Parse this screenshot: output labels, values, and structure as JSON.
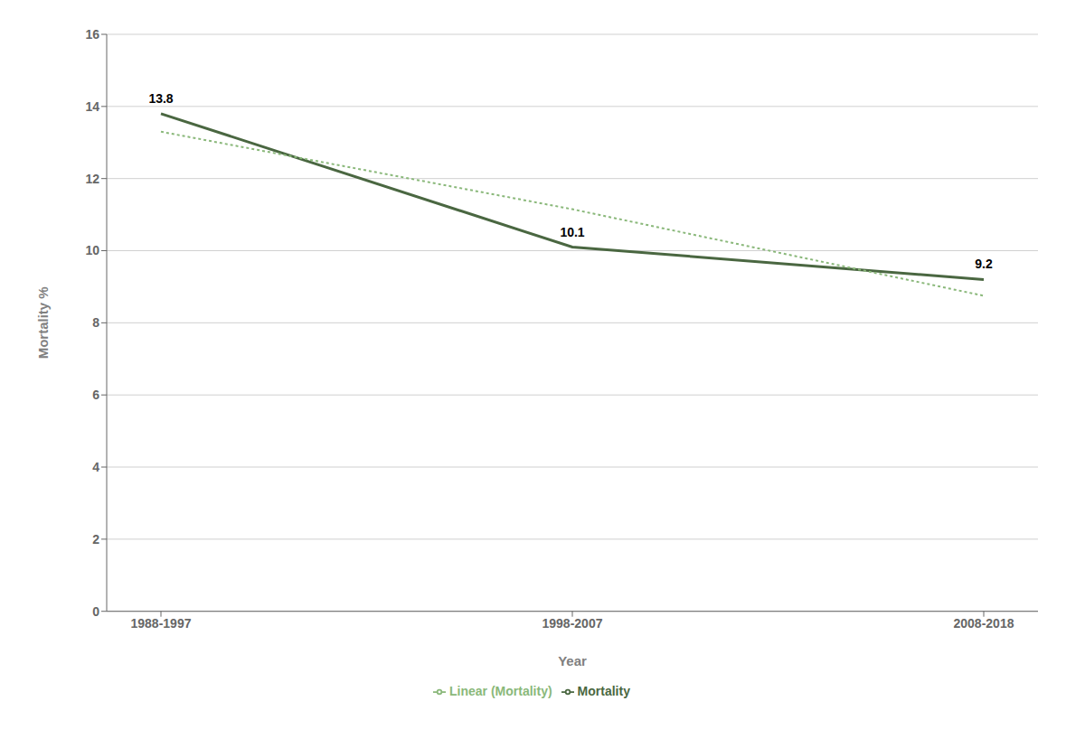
{
  "chart_data": {
    "type": "line",
    "xlabel": "Year",
    "ylabel": "Mortality %",
    "categories": [
      "1988-1997",
      "1998-2007",
      "2008-2018"
    ],
    "series": [
      {
        "name": "Mortality",
        "color": "#4a6741",
        "values": [
          13.8,
          10.1,
          9.2
        ],
        "line_style": "solid",
        "data_labels": true
      },
      {
        "name": "Linear (Mortality)",
        "color": "#8ab87a",
        "values": [
          13.3,
          11.15,
          8.75
        ],
        "line_style": "dotted"
      }
    ],
    "ylim": [
      0,
      16
    ],
    "yticks": [
      0,
      2,
      4,
      6,
      8,
      10,
      12,
      14,
      16
    ],
    "grid": true,
    "legend": "bottom"
  }
}
